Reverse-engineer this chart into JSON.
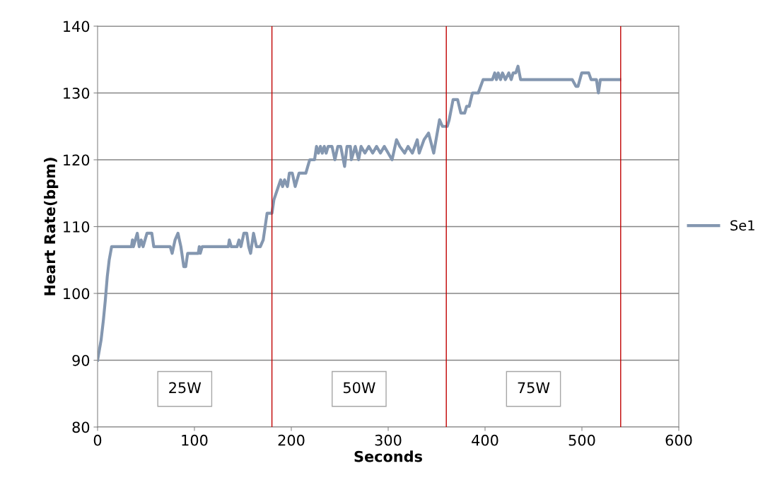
{
  "chart_data": {
    "type": "line",
    "xlabel": "Seconds",
    "ylabel": "Heart Rate(bpm)",
    "xlim": [
      0,
      600
    ],
    "xticks": [
      0,
      100,
      200,
      300,
      400,
      500,
      600
    ],
    "ylim": [
      80,
      140
    ],
    "yticks": [
      80,
      90,
      100,
      110,
      120,
      130,
      140
    ],
    "grid": "y",
    "legend": "right",
    "marker": "none",
    "line_style": "solid",
    "series": [
      {
        "name": "Se1",
        "color": "#8497b0",
        "x": [
          0,
          3.6,
          6,
          8,
          10,
          12,
          14.5,
          35,
          36,
          37,
          41,
          43,
          45,
          47,
          51,
          56,
          58,
          75,
          77,
          80,
          83,
          86,
          89,
          91,
          93,
          104,
          105,
          106,
          108,
          135,
          136,
          138,
          144,
          146,
          148,
          151,
          154,
          156,
          158,
          161,
          164,
          168,
          171,
          174,
          175,
          180,
          182,
          189,
          191,
          193,
          196,
          198,
          201,
          204,
          208,
          210,
          215,
          217,
          219,
          224,
          226,
          228,
          230,
          232,
          234,
          236,
          238,
          242,
          245,
          248,
          251,
          255,
          257.5,
          261,
          262,
          266,
          269.5,
          272,
          276,
          280,
          284,
          288,
          292,
          296,
          300,
          304,
          308.6,
          312,
          317,
          320.5,
          325,
          330,
          332,
          337,
          341.7,
          347,
          353,
          356,
          361,
          363,
          367,
          371.7,
          375,
          379,
          381,
          383.6,
          387,
          393,
          395.5,
          398,
          407.6,
          410,
          411.7,
          413.6,
          416,
          418,
          421,
          424.5,
          427,
          429,
          431.7,
          434,
          436.7,
          490,
          493.8,
          496,
          499.8,
          507,
          509.5,
          515,
          517,
          519,
          539
        ],
        "values": [
          90,
          93,
          96,
          99,
          102.5,
          105,
          107,
          107,
          108,
          107,
          109,
          107,
          108,
          107,
          109,
          109,
          107,
          107,
          106,
          108,
          109,
          107,
          104,
          104,
          106,
          106,
          107,
          106,
          107,
          107,
          108,
          107,
          107,
          108,
          107,
          109,
          109,
          107,
          106,
          109,
          107,
          107,
          108,
          111,
          112,
          112,
          114,
          117,
          116,
          117,
          116,
          118,
          118,
          116,
          118,
          118,
          118,
          119,
          120,
          120,
          122,
          121,
          122,
          121,
          122,
          121,
          122,
          122,
          120,
          122,
          122,
          119,
          122,
          122,
          120,
          122,
          120,
          122,
          121,
          122,
          121,
          122,
          121,
          122,
          121,
          120,
          123,
          122,
          121,
          122,
          121,
          123,
          121,
          123,
          124,
          121,
          126,
          125,
          125,
          126,
          129,
          129,
          127,
          127,
          128,
          128,
          130,
          130,
          131,
          132,
          132,
          133,
          132,
          133,
          132,
          133,
          132,
          133,
          132,
          133,
          133,
          134,
          132,
          132,
          131,
          131,
          133,
          133,
          132,
          132,
          130,
          132,
          132
        ]
      }
    ],
    "ref_lines": [
      {
        "axis": "x",
        "value": 180,
        "color": "#c00000"
      },
      {
        "axis": "x",
        "value": 360,
        "color": "#c00000"
      },
      {
        "axis": "x",
        "value": 540,
        "color": "#c00000"
      }
    ],
    "annotations": [
      "25W",
      "50W",
      "75W"
    ]
  }
}
